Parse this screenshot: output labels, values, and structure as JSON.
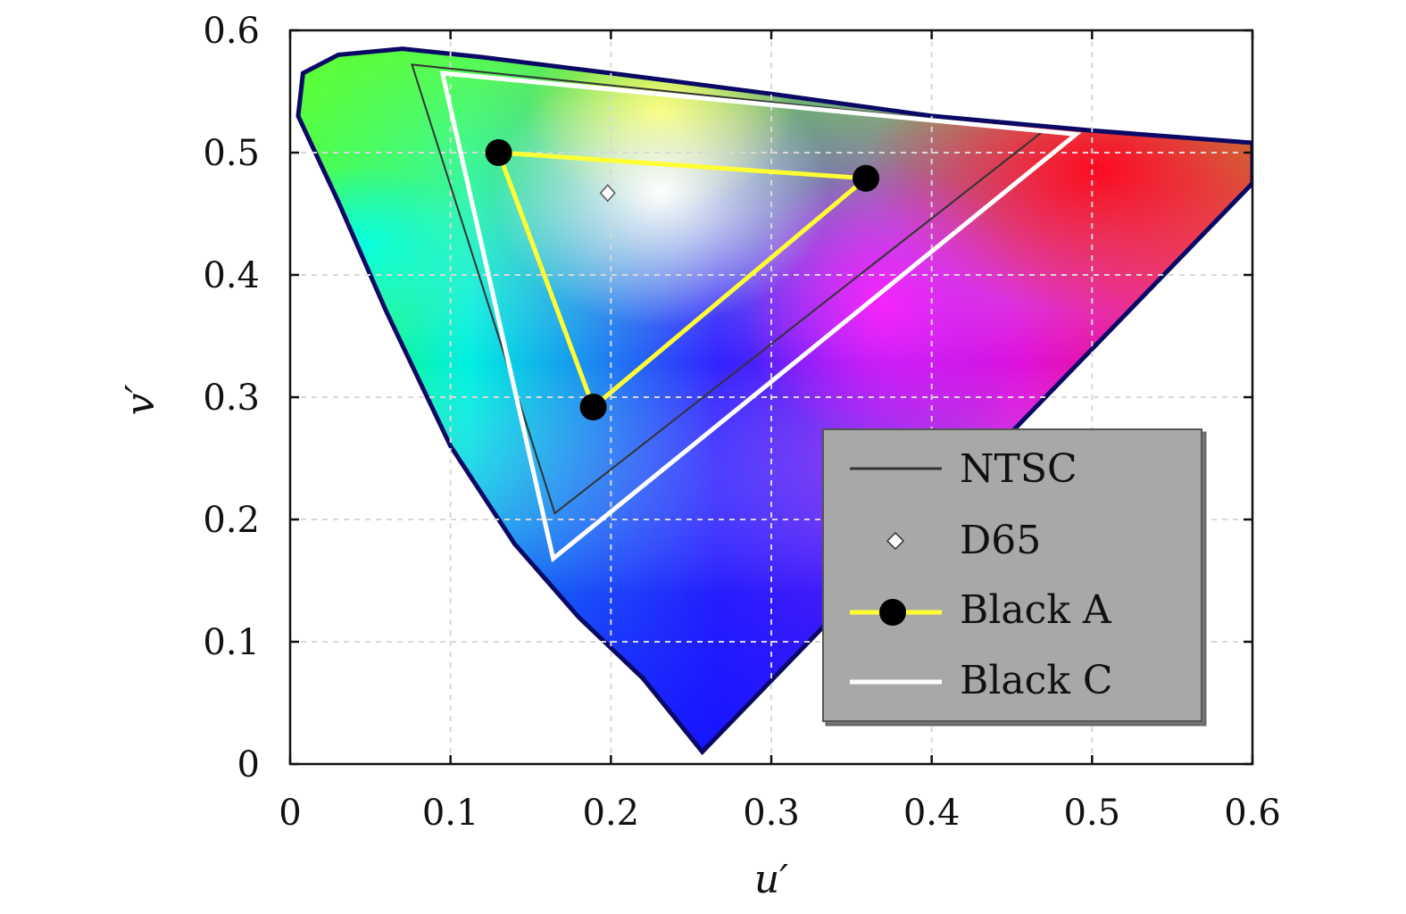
{
  "chart_data": {
    "type": "scatter",
    "xlabel": "u′",
    "ylabel": "v′",
    "xlim": [
      0,
      0.6
    ],
    "ylim": [
      0,
      0.6
    ],
    "x_ticks": [
      "0",
      "0.1",
      "0.2",
      "0.3",
      "0.4",
      "0.5",
      "0.6"
    ],
    "y_ticks": [
      "0",
      "0.1",
      "0.2",
      "0.3",
      "0.4",
      "0.5",
      "0.6"
    ],
    "grid": true,
    "legend_position": "bottom-right",
    "background": "CIE 1976 u′v′ chromaticity diagram",
    "spectral_locus": [
      [
        0.257,
        0.01
      ],
      [
        0.22,
        0.07
      ],
      [
        0.18,
        0.12
      ],
      [
        0.14,
        0.18
      ],
      [
        0.1,
        0.26
      ],
      [
        0.06,
        0.37
      ],
      [
        0.03,
        0.46
      ],
      [
        0.005,
        0.53
      ],
      [
        0.008,
        0.565
      ],
      [
        0.03,
        0.58
      ],
      [
        0.07,
        0.585
      ],
      [
        0.12,
        0.578
      ],
      [
        0.2,
        0.565
      ],
      [
        0.3,
        0.548
      ],
      [
        0.4,
        0.53
      ],
      [
        0.5,
        0.518
      ],
      [
        0.6,
        0.508
      ]
    ],
    "purple_line": [
      [
        0.6,
        0.475
      ],
      [
        0.257,
        0.01
      ]
    ],
    "series": [
      {
        "name": "NTSC",
        "type": "polygon",
        "color": "#333333",
        "points": [
          [
            0.076,
            0.572
          ],
          [
            0.47,
            0.518
          ],
          [
            0.165,
            0.205
          ]
        ]
      },
      {
        "name": "D65",
        "type": "point",
        "color": "#ffffff",
        "points": [
          [
            0.198,
            0.467
          ]
        ]
      },
      {
        "name": "Black A",
        "type": "polygon-markers",
        "color": "#ffff33",
        "marker_color": "#000000",
        "points": [
          [
            0.13,
            0.5
          ],
          [
            0.359,
            0.479
          ],
          [
            0.189,
            0.292
          ]
        ]
      },
      {
        "name": "Black C",
        "type": "polygon",
        "color": "#ffffff",
        "points": [
          [
            0.095,
            0.565
          ],
          [
            0.49,
            0.515
          ],
          [
            0.164,
            0.168
          ]
        ]
      }
    ]
  }
}
